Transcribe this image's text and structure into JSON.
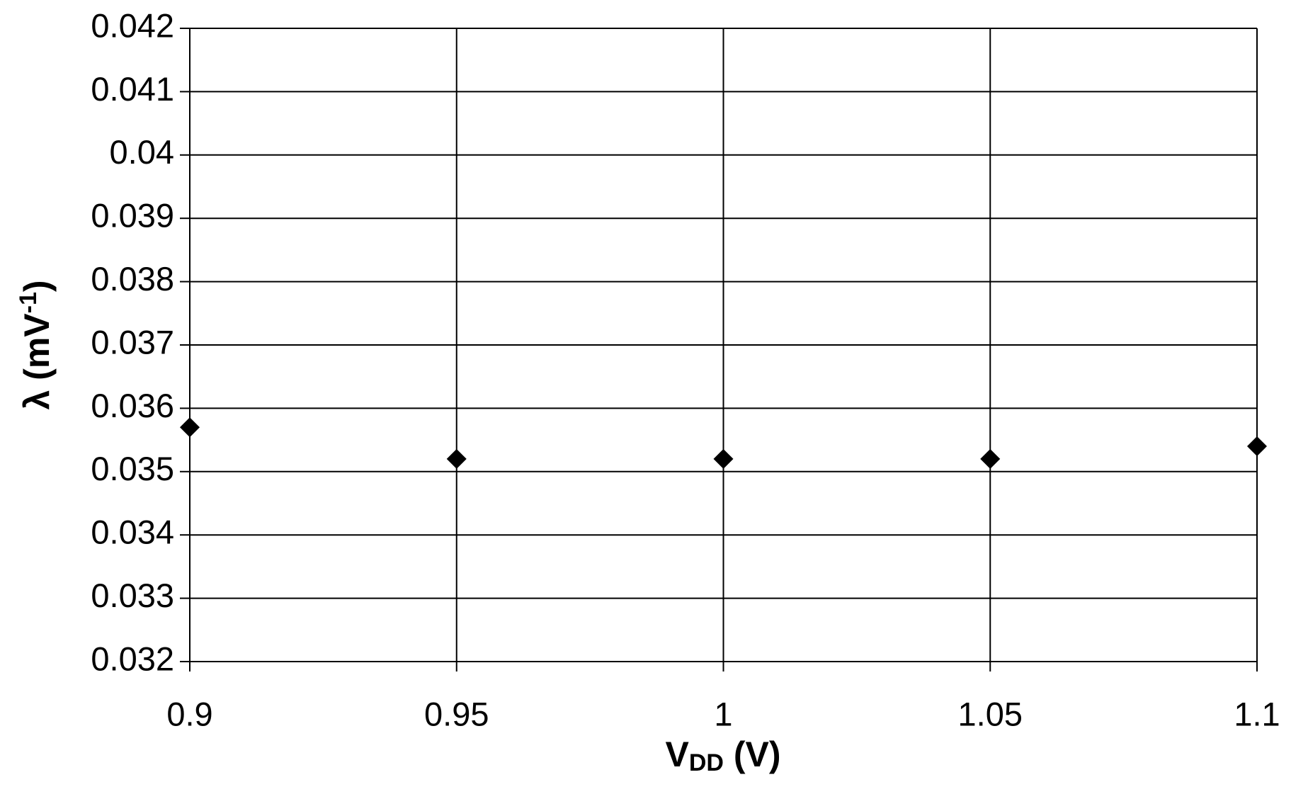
{
  "chart_data": {
    "type": "scatter",
    "x_label": {
      "main": "V",
      "sub": "DD",
      "tail": " (V)"
    },
    "y_label": {
      "main": "λ (mV",
      "sup": "-1",
      "tail": ")"
    },
    "x": [
      0.9,
      0.95,
      1,
      1.05,
      1.1
    ],
    "series": [
      {
        "color": "#000000",
        "values": [
          0.0357,
          0.0352,
          0.0352,
          0.0352,
          0.0354
        ]
      }
    ],
    "xlim": [
      0.9,
      1.1
    ],
    "xticks": [
      0.9,
      0.95,
      1,
      1.05,
      1.1
    ],
    "ylim": [
      0.032,
      0.042
    ],
    "yticks": [
      0.032,
      0.033,
      0.034,
      0.035,
      0.036,
      0.037,
      0.038,
      0.039,
      0.04,
      0.041,
      0.042
    ],
    "grid": true,
    "marker": "diamond"
  }
}
